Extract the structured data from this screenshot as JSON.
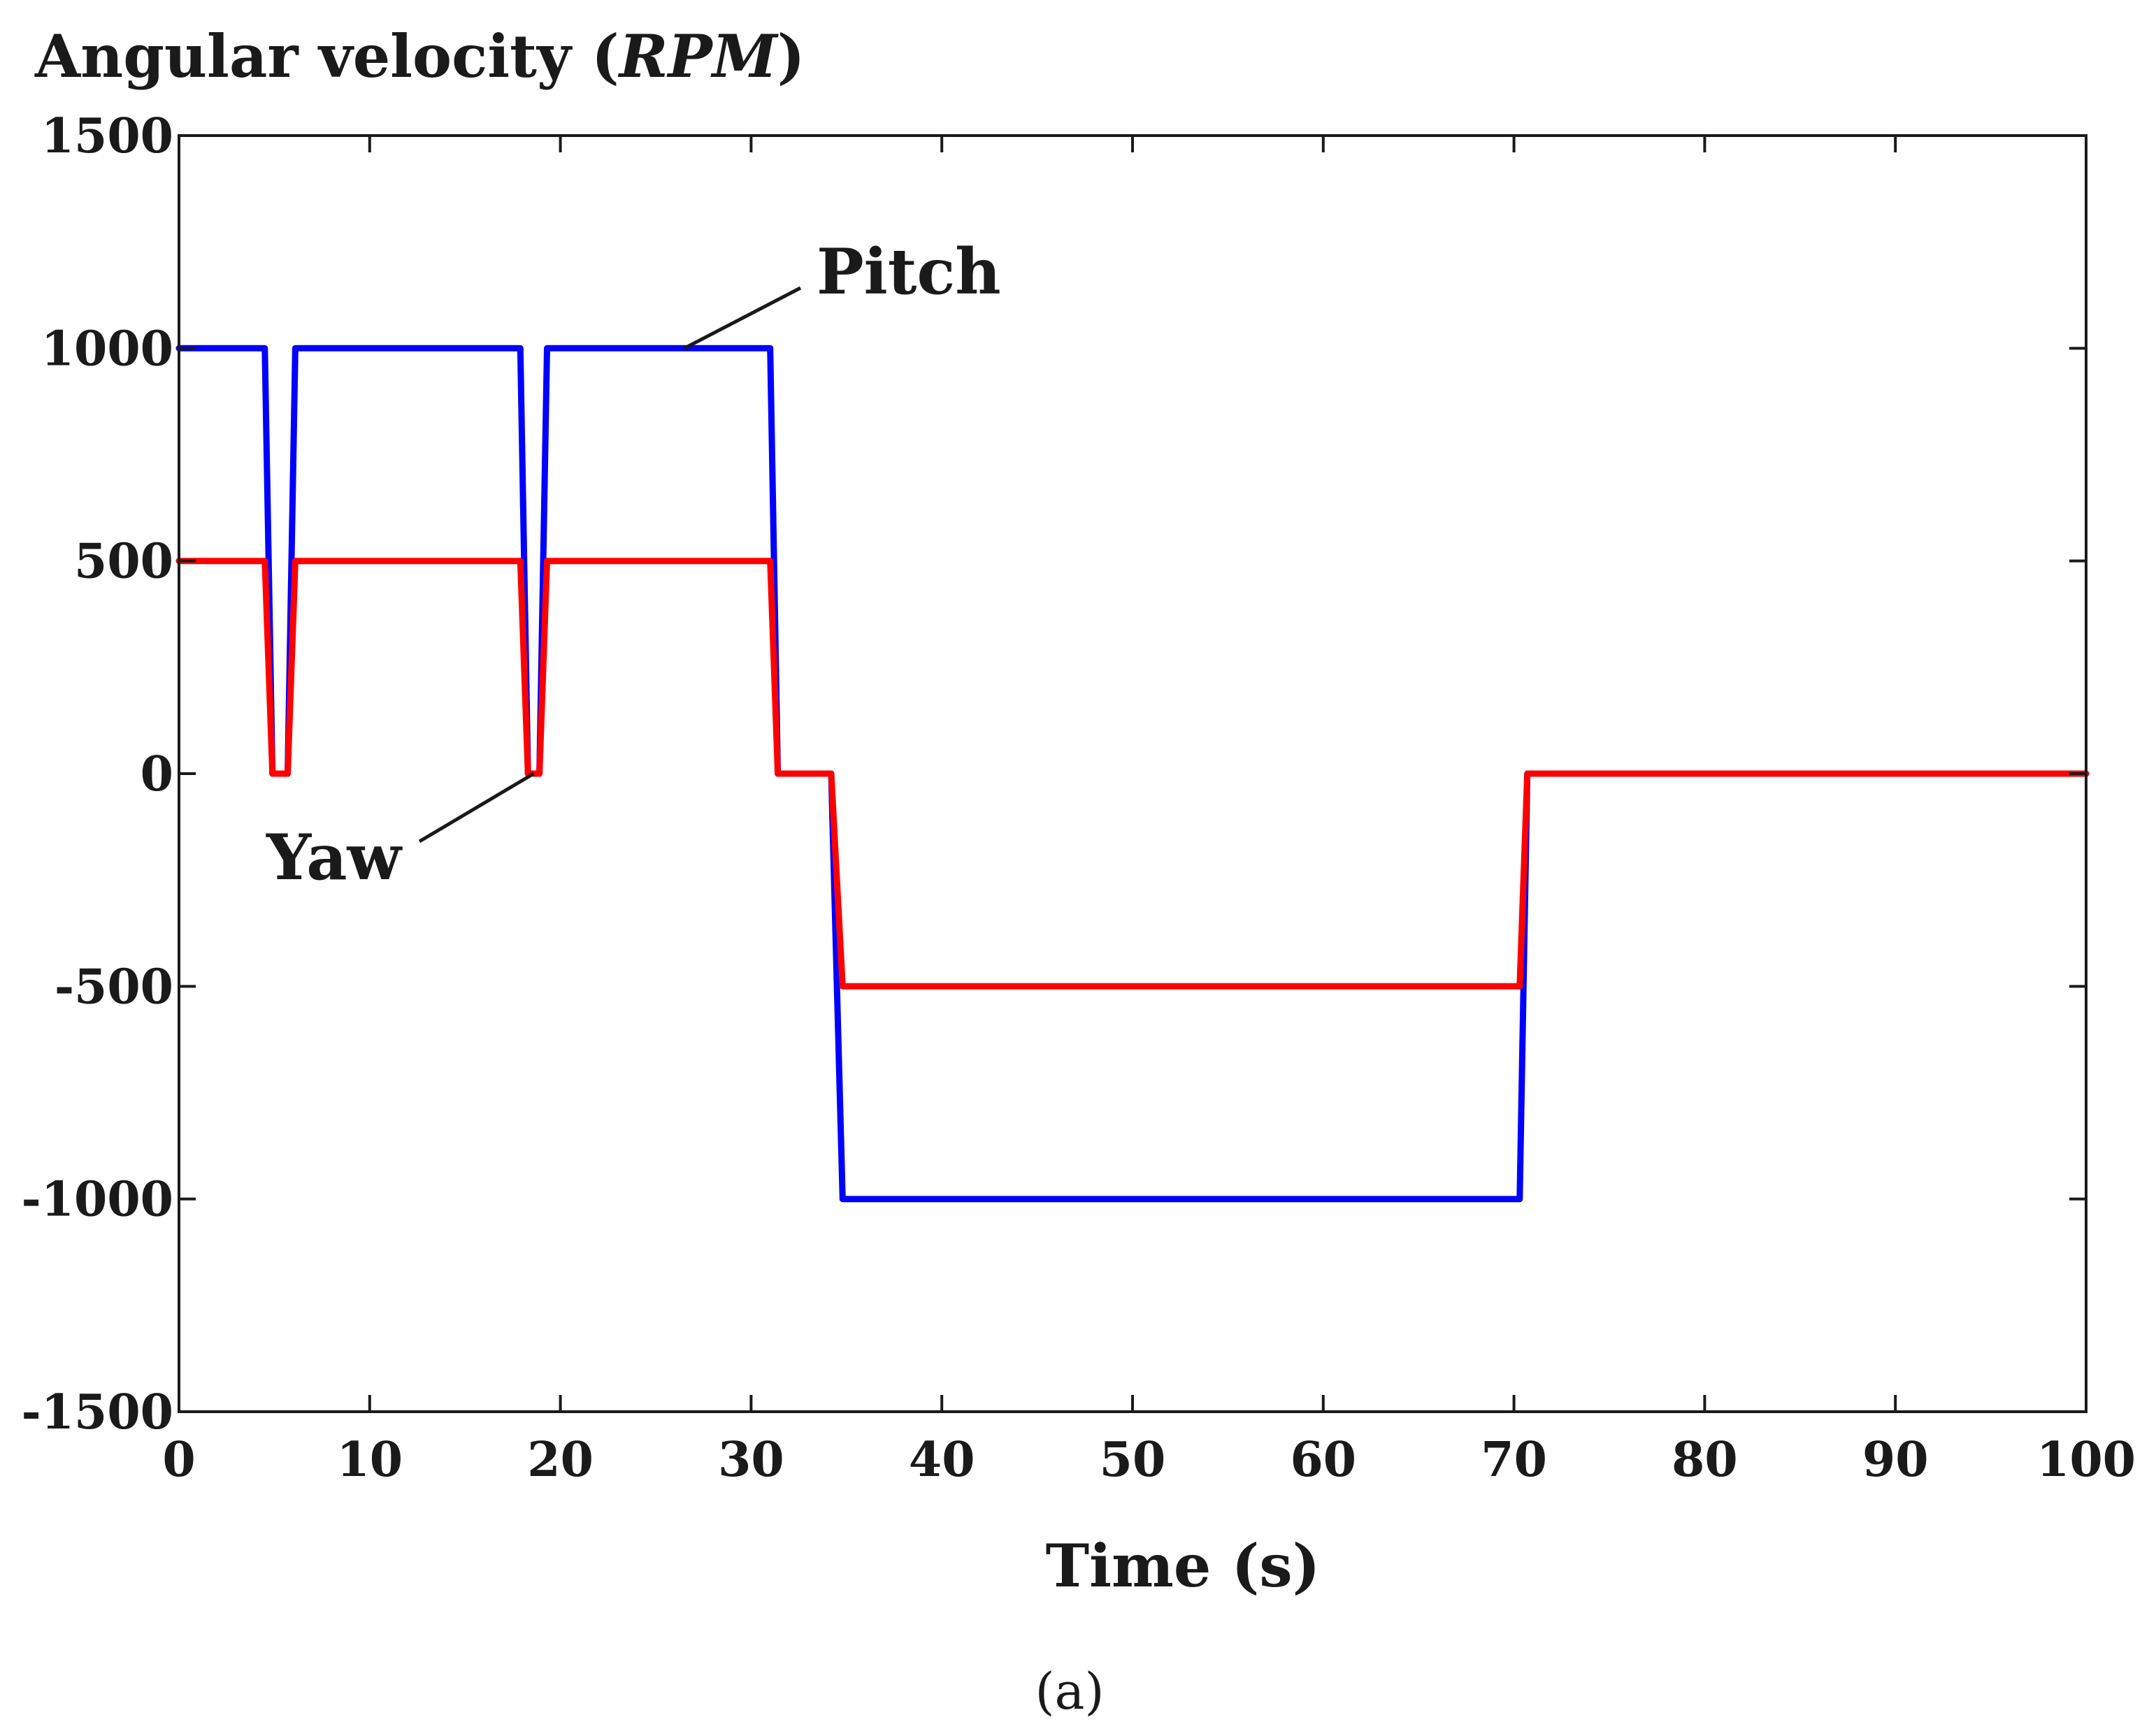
{
  "chart_data": {
    "type": "line",
    "ylabel_prefix": "Angular velocity (",
    "ylabel_unit": "RPM",
    "ylabel_suffix": ")",
    "xlabel": "Time (s)",
    "caption": "(a)",
    "xlim": [
      0,
      100
    ],
    "ylim": [
      -1500,
      1500
    ],
    "xticks": [
      0,
      10,
      20,
      30,
      40,
      50,
      60,
      70,
      80,
      90,
      100
    ],
    "yticks": [
      -1500,
      -1000,
      -500,
      0,
      500,
      1000,
      1500
    ],
    "xtick_labels": [
      "0",
      "10",
      "20",
      "30",
      "40",
      "50",
      "60",
      "70",
      "80",
      "90",
      "100"
    ],
    "ytick_labels": [
      "-1500",
      "-1000",
      "-500",
      "0",
      "500",
      "1000",
      "1500"
    ],
    "grid": false,
    "series": [
      {
        "name": "Pitch",
        "color": "#0000ff",
        "x": [
          0,
          4.5,
          4.9,
          5.7,
          6.1,
          17.9,
          18.3,
          18.9,
          19.3,
          31.0,
          31.4,
          34.2,
          34.8,
          70.3,
          70.7,
          100
        ],
        "y": [
          1000,
          1000,
          0,
          0,
          1000,
          1000,
          0,
          0,
          1000,
          1000,
          0,
          0,
          -1000,
          -1000,
          0,
          0
        ]
      },
      {
        "name": "Yaw",
        "color": "#ff0000",
        "x": [
          0,
          4.5,
          4.9,
          5.7,
          6.1,
          17.9,
          18.3,
          18.9,
          19.3,
          31.0,
          31.4,
          34.2,
          34.8,
          70.3,
          70.7,
          100
        ],
        "y": [
          500,
          500,
          0,
          0,
          500,
          500,
          0,
          0,
          500,
          500,
          0,
          0,
          -500,
          -500,
          0,
          0
        ]
      }
    ],
    "annotations": [
      {
        "text": "Pitch",
        "target": [
          26.5,
          1000
        ]
      },
      {
        "text": "Yaw",
        "target": [
          18.6,
          0
        ]
      }
    ]
  }
}
